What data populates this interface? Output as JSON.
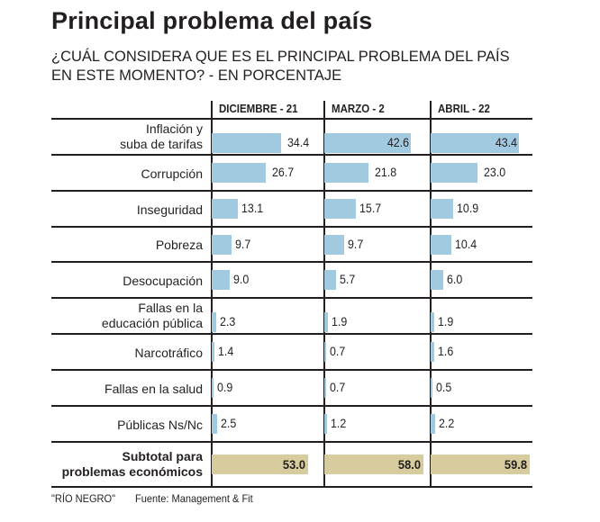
{
  "chart_data": {
    "type": "bar",
    "title": "Principal problema del país",
    "subtitle": "¿CUÁL CONSIDERA QUE ES EL PRINCIPAL PROBLEMA DEL PAÍS EN ESTE MOMENTO? - EN PORCENTAJE",
    "subtitle_lines": [
      "¿CUÁL CONSIDERA QUE ES EL PRINCIPAL PROBLEMA DEL PAÍS",
      "EN ESTE MOMENTO? - EN PORCENTAJE"
    ],
    "unit": "%",
    "orientation": "horizontal",
    "categories": [
      "Inflación y suba de tarifas",
      "Corrupción",
      "Inseguridad",
      "Pobreza",
      "Desocupación",
      "Fallas en la educación pública",
      "Narcotráfico",
      "Fallas en la salud",
      "Públicas Ns/Nc"
    ],
    "category_lines": [
      [
        "Inflación y",
        "suba de tarifas"
      ],
      [
        "Corrupción"
      ],
      [
        "Inseguridad"
      ],
      [
        "Pobreza"
      ],
      [
        "Desocupación"
      ],
      [
        "Fallas en la",
        "educación pública"
      ],
      [
        "Narcotráfico"
      ],
      [
        "Fallas en la salud"
      ],
      [
        "Públicas Ns/Nc"
      ]
    ],
    "series": [
      {
        "name": "DICIEMBRE - 21",
        "values": [
          34.4,
          26.7,
          13.1,
          9.7,
          9.0,
          2.3,
          1.4,
          0.9,
          2.5
        ],
        "subtotal": 53.0
      },
      {
        "name": "MARZO - 2",
        "values": [
          42.6,
          21.8,
          15.7,
          9.7,
          5.7,
          1.9,
          0.7,
          0.7,
          1.2
        ],
        "subtotal": 58.0
      },
      {
        "name": "ABRIL - 22",
        "values": [
          43.4,
          23.0,
          10.9,
          10.4,
          6.0,
          1.9,
          1.6,
          0.5,
          2.2
        ],
        "subtotal": 59.8
      }
    ],
    "subtotal_label": "Subtotal para problemas económicos",
    "subtotal_lines": [
      "Subtotal para",
      "problemas económicos"
    ],
    "bar_color": "#a1c9df",
    "subtotal_color": "#d6cc9e",
    "xlim": [
      0,
      60
    ],
    "grid": false,
    "legend": "none"
  },
  "footer": {
    "credit": "\"RÍO NEGRO\"",
    "source": "Fuente: Management & Fit"
  }
}
